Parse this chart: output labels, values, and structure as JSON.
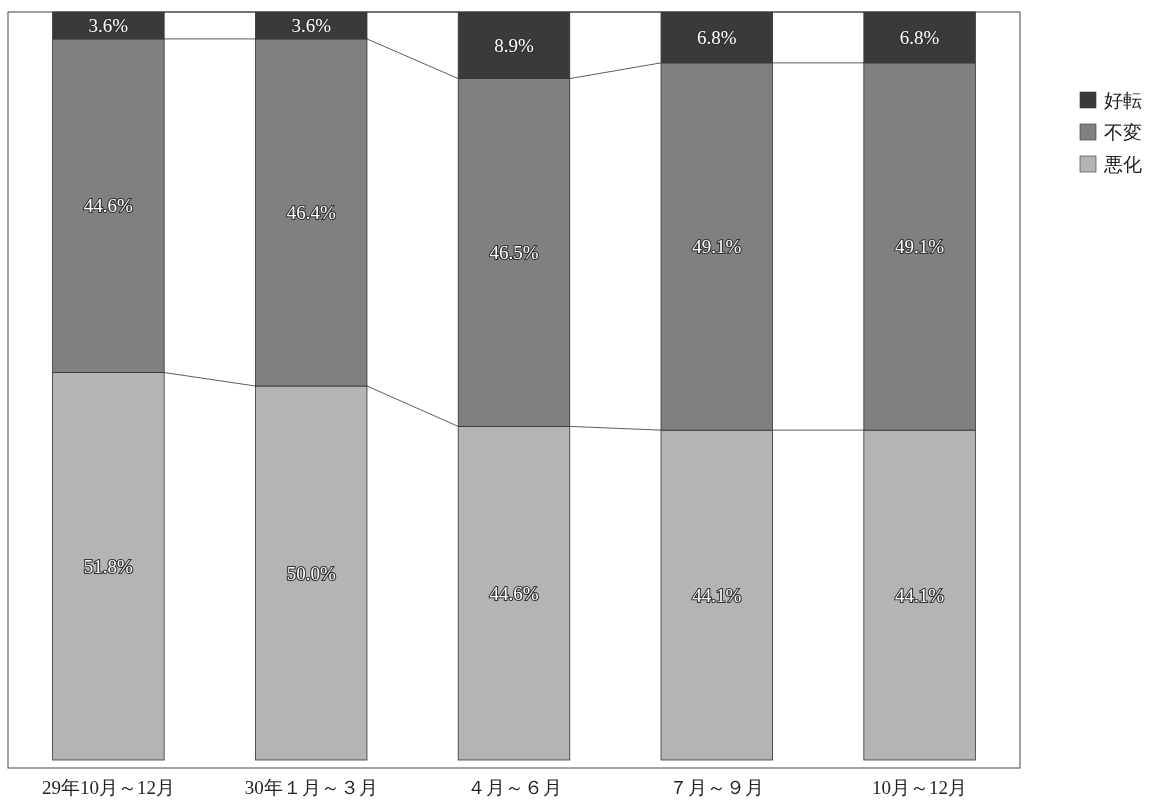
{
  "chart_data": {
    "type": "bar",
    "stacked": true,
    "categories": [
      "29年10月～12月",
      "30年１月～３月",
      "４月～６月",
      "７月～９月",
      "10月～12月"
    ],
    "series": [
      {
        "name": "悪化",
        "color": "#b4b4b4",
        "values": [
          51.8,
          50.0,
          44.6,
          44.1,
          44.1
        ],
        "value_labels": [
          "51.8%",
          "50.0%",
          "44.6%",
          "44.1%",
          "44.1%"
        ]
      },
      {
        "name": "不変",
        "color": "#808080",
        "values": [
          44.6,
          46.4,
          46.5,
          49.1,
          49.1
        ],
        "value_labels": [
          "44.6%",
          "46.4%",
          "46.5%",
          "49.1%",
          "49.1%"
        ]
      },
      {
        "name": "好転",
        "color": "#3a3a3a",
        "values": [
          3.6,
          3.6,
          8.9,
          6.8,
          6.8
        ],
        "value_labels": [
          "3.6%",
          "3.6%",
          "8.9%",
          "6.8%",
          "6.8%"
        ]
      }
    ],
    "ylim": [
      0,
      100
    ],
    "tick_labels": "x",
    "grid": false,
    "legend": "right"
  }
}
